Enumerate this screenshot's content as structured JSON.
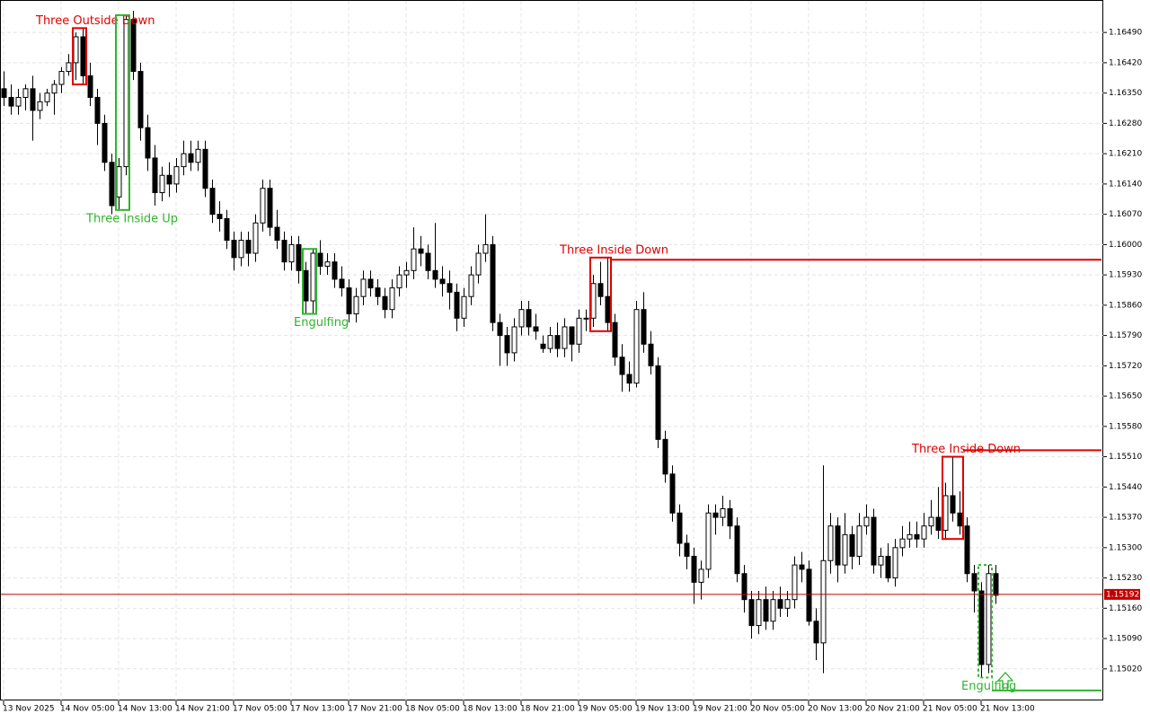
{
  "chart_data": {
    "type": "candlestick",
    "ylim": [
      1.14947,
      1.16565
    ],
    "yticks": [
      {
        "value": 1.1649,
        "label": "1.16490"
      },
      {
        "value": 1.1642,
        "label": "1.16420"
      },
      {
        "value": 1.1635,
        "label": "1.16350"
      },
      {
        "value": 1.1628,
        "label": "1.16280"
      },
      {
        "value": 1.1621,
        "label": "1.16210"
      },
      {
        "value": 1.1614,
        "label": "1.16140"
      },
      {
        "value": 1.1607,
        "label": "1.16070"
      },
      {
        "value": 1.16,
        "label": "1.16000"
      },
      {
        "value": 1.1593,
        "label": "1.15930"
      },
      {
        "value": 1.1586,
        "label": "1.15860"
      },
      {
        "value": 1.1579,
        "label": "1.15790"
      },
      {
        "value": 1.1572,
        "label": "1.15720"
      },
      {
        "value": 1.1565,
        "label": "1.15650"
      },
      {
        "value": 1.1558,
        "label": "1.15580"
      },
      {
        "value": 1.1551,
        "label": "1.15510"
      },
      {
        "value": 1.1544,
        "label": "1.15440"
      },
      {
        "value": 1.1537,
        "label": "1.15370"
      },
      {
        "value": 1.153,
        "label": "1.15300"
      },
      {
        "value": 1.1523,
        "label": "1.15230"
      },
      {
        "value": 1.1516,
        "label": "1.15160"
      },
      {
        "value": 1.1509,
        "label": "1.15090"
      },
      {
        "value": 1.1502,
        "label": "1.15020"
      }
    ],
    "grid": true,
    "categories": [
      "13 Nov 2025",
      null,
      null,
      null,
      null,
      null,
      null,
      null,
      "14 Nov 05:00",
      null,
      null,
      null,
      null,
      null,
      null,
      null,
      "14 Nov 13:00",
      null,
      null,
      null,
      null,
      null,
      null,
      null,
      "14 Nov 21:00",
      null,
      null,
      null,
      null,
      null,
      null,
      null,
      "17 Nov 05:00",
      null,
      null,
      null,
      null,
      null,
      null,
      null,
      "17 Nov 13:00",
      null,
      null,
      null,
      null,
      null,
      null,
      null,
      "17 Nov 21:00",
      null,
      null,
      null,
      null,
      null,
      null,
      null,
      "18 Nov 05:00",
      null,
      null,
      null,
      null,
      null,
      null,
      null,
      "18 Nov 13:00",
      null,
      null,
      null,
      null,
      null,
      null,
      null,
      "18 Nov 21:00",
      null,
      null,
      null,
      null,
      null,
      null,
      null,
      "19 Nov 05:00",
      null,
      null,
      null,
      null,
      null,
      null,
      null,
      "19 Nov 13:00",
      null,
      null,
      null,
      null,
      null,
      null,
      null,
      "19 Nov 21:00",
      null,
      null,
      null,
      null,
      null,
      null,
      null,
      "20 Nov 05:00",
      null,
      null,
      null,
      null,
      null,
      null,
      null,
      "20 Nov 13:00",
      null,
      null,
      null,
      null,
      null,
      null,
      null,
      "20 Nov 21:00",
      null,
      null,
      null,
      null,
      null,
      null,
      null,
      "21 Nov 05:00",
      null,
      null,
      null,
      null,
      null,
      null,
      null,
      "21 Nov 13:00",
      null,
      null
    ],
    "open": [
      1.1636,
      1.1634,
      1.1632,
      1.1634,
      1.1636,
      1.1631,
      1.1633,
      1.1635,
      1.1637,
      1.164,
      1.1642,
      1.1648,
      1.1639,
      1.1634,
      1.1628,
      1.1619,
      1.1611,
      1.1618,
      1.1652,
      1.164,
      1.1627,
      1.162,
      1.1612,
      1.1616,
      1.1614,
      1.1618,
      1.1621,
      1.1619,
      1.1622,
      1.1613,
      1.1607,
      1.1606,
      1.1601,
      1.1597,
      1.1601,
      1.1598,
      1.1605,
      1.1613,
      1.1604,
      1.1601,
      1.1596,
      1.16,
      1.1594,
      1.1587,
      1.1598,
      1.1595,
      1.1596,
      1.1592,
      1.159,
      1.1584,
      1.1588,
      1.1592,
      1.159,
      1.1588,
      1.1585,
      1.159,
      1.1593,
      1.1594,
      1.1599,
      1.1598,
      1.1594,
      1.1592,
      1.1591,
      1.1589,
      1.1583,
      1.1588,
      1.1593,
      1.1598,
      1.16,
      1.1582,
      1.1579,
      1.1575,
      1.1581,
      1.1585,
      1.1581,
      1.1577,
      1.1576,
      1.1579,
      1.1576,
      1.1581,
      1.1577,
      1.1583,
      1.1583,
      1.1591,
      1.1588,
      1.1582,
      1.1574,
      1.157,
      1.1568,
      1.1585,
      1.1577,
      1.1572,
      1.1555,
      1.1547,
      1.1538,
      1.1531,
      1.1528,
      1.1522,
      1.1525,
      1.1538,
      1.1537,
      1.1539,
      1.1535,
      1.1524,
      1.1518,
      1.1512,
      1.1518,
      1.1513,
      1.1518,
      1.1516,
      1.1518,
      1.1526,
      1.1525,
      1.1513,
      1.1508,
      1.1527,
      1.1535,
      1.1526,
      1.1533,
      1.1528,
      1.1535,
      1.1537,
      1.1526,
      1.1528,
      1.1523,
      1.153,
      1.1532,
      1.1533,
      1.1532,
      1.1535,
      1.1537,
      1.1534,
      1.1542,
      1.1538,
      1.1535,
      1.1524,
      1.152,
      1.1503,
      1.1524
    ],
    "high": [
      1.164,
      1.1637,
      1.1636,
      1.1637,
      1.1639,
      1.1635,
      1.1636,
      1.1638,
      1.1641,
      1.1644,
      1.1649,
      1.165,
      1.1642,
      1.1636,
      1.163,
      1.1621,
      1.162,
      1.1653,
      1.1654,
      1.1642,
      1.163,
      1.1623,
      1.1618,
      1.1619,
      1.162,
      1.1624,
      1.1624,
      1.1624,
      1.1624,
      1.1615,
      1.161,
      1.1608,
      1.1603,
      1.1603,
      1.1603,
      1.1607,
      1.1615,
      1.1615,
      1.1608,
      1.1603,
      1.1602,
      1.1602,
      1.1596,
      1.1599,
      1.1601,
      1.1598,
      1.1598,
      1.1595,
      1.1592,
      1.159,
      1.1594,
      1.1594,
      1.1592,
      1.159,
      1.1592,
      1.1595,
      1.1596,
      1.1604,
      1.1602,
      1.16,
      1.1605,
      1.1595,
      1.1594,
      1.1591,
      1.159,
      1.1595,
      1.16,
      1.1607,
      1.1602,
      1.1584,
      1.1581,
      1.1583,
      1.1587,
      1.1587,
      1.1584,
      1.1579,
      1.1581,
      1.1582,
      1.1583,
      1.1581,
      1.1585,
      1.1585,
      1.1593,
      1.1596,
      1.1597,
      1.1584,
      1.1577,
      1.1573,
      1.1587,
      1.1589,
      1.158,
      1.1574,
      1.1557,
      1.1549,
      1.154,
      1.1533,
      1.153,
      1.1527,
      1.154,
      1.154,
      1.1542,
      1.1541,
      1.1537,
      1.1526,
      1.152,
      1.152,
      1.1521,
      1.152,
      1.1521,
      1.152,
      1.1528,
      1.1529,
      1.1527,
      1.1516,
      1.1549,
      1.1538,
      1.1537,
      1.1538,
      1.1535,
      1.1538,
      1.154,
      1.1539,
      1.153,
      1.1531,
      1.1532,
      1.1535,
      1.1536,
      1.1536,
      1.1538,
      1.1541,
      1.1544,
      1.1545,
      1.1551,
      1.1543,
      1.1537,
      1.1526,
      1.1522,
      1.1526,
      1.1526
    ],
    "low": [
      1.1632,
      1.163,
      1.163,
      1.1631,
      1.1624,
      1.1629,
      1.1632,
      1.163,
      1.1635,
      1.1639,
      1.1638,
      1.1637,
      1.1632,
      1.1623,
      1.1617,
      1.1607,
      1.1608,
      1.1616,
      1.1638,
      1.1624,
      1.1617,
      1.1609,
      1.161,
      1.1611,
      1.1612,
      1.1616,
      1.1617,
      1.1617,
      1.1611,
      1.1605,
      1.1603,
      1.1599,
      1.1594,
      1.1595,
      1.1595,
      1.1596,
      1.1603,
      1.1602,
      1.1599,
      1.1594,
      1.1594,
      1.1591,
      1.1584,
      1.1584,
      1.1593,
      1.1593,
      1.159,
      1.1588,
      1.1582,
      1.1582,
      1.1586,
      1.1588,
      1.1586,
      1.1583,
      1.1583,
      1.1588,
      1.159,
      1.1592,
      1.1595,
      1.1592,
      1.159,
      1.1588,
      1.1585,
      1.158,
      1.1581,
      1.1586,
      1.1591,
      1.1596,
      1.158,
      1.1572,
      1.1572,
      1.1573,
      1.1579,
      1.1579,
      1.1578,
      1.1575,
      1.1575,
      1.1574,
      1.1574,
      1.1573,
      1.1575,
      1.158,
      1.1581,
      1.1586,
      1.158,
      1.1572,
      1.1566,
      1.1566,
      1.1567,
      1.1575,
      1.157,
      1.1553,
      1.1545,
      1.1536,
      1.1528,
      1.1525,
      1.1517,
      1.1518,
      1.1523,
      1.1533,
      1.1535,
      1.1532,
      1.1522,
      1.1515,
      1.1509,
      1.151,
      1.1511,
      1.1511,
      1.1514,
      1.1514,
      1.1516,
      1.1522,
      1.1512,
      1.1504,
      1.1501,
      1.1524,
      1.1522,
      1.1524,
      1.1525,
      1.1526,
      1.1533,
      1.1524,
      1.1523,
      1.1522,
      1.1521,
      1.1528,
      1.153,
      1.153,
      1.153,
      1.1533,
      1.1532,
      1.1532,
      1.1536,
      1.1533,
      1.1522,
      1.1515,
      1.15,
      1.1501,
      1.1517
    ],
    "close": [
      1.1634,
      1.1632,
      1.1634,
      1.1636,
      1.1631,
      1.1633,
      1.1635,
      1.1637,
      1.164,
      1.1642,
      1.1648,
      1.1639,
      1.1634,
      1.1628,
      1.1619,
      1.1609,
      1.1618,
      1.1652,
      1.164,
      1.1627,
      1.162,
      1.1612,
      1.1616,
      1.1614,
      1.1618,
      1.1621,
      1.1619,
      1.1622,
      1.1613,
      1.1607,
      1.1606,
      1.1601,
      1.1597,
      1.1601,
      1.1598,
      1.1605,
      1.1613,
      1.1604,
      1.1601,
      1.1596,
      1.16,
      1.1594,
      1.1587,
      1.1598,
      1.1595,
      1.1596,
      1.1592,
      1.159,
      1.1584,
      1.1588,
      1.1592,
      1.159,
      1.1588,
      1.1585,
      1.159,
      1.1593,
      1.1594,
      1.1599,
      1.1598,
      1.1594,
      1.1592,
      1.1591,
      1.1589,
      1.1583,
      1.1588,
      1.1593,
      1.1598,
      1.16,
      1.1582,
      1.1579,
      1.1575,
      1.1581,
      1.1585,
      1.1581,
      1.158,
      1.1576,
      1.1579,
      1.1576,
      1.1581,
      1.1577,
      1.1583,
      1.1583,
      1.1591,
      1.1588,
      1.1582,
      1.1574,
      1.157,
      1.1568,
      1.1585,
      1.1577,
      1.1572,
      1.1555,
      1.1547,
      1.1538,
      1.1531,
      1.1528,
      1.1522,
      1.1525,
      1.1538,
      1.1537,
      1.1539,
      1.1535,
      1.1524,
      1.1518,
      1.1512,
      1.1518,
      1.1513,
      1.1518,
      1.1516,
      1.1518,
      1.1526,
      1.1525,
      1.1513,
      1.1508,
      1.1527,
      1.1535,
      1.1526,
      1.1533,
      1.1528,
      1.1535,
      1.1537,
      1.1526,
      1.1528,
      1.1523,
      1.153,
      1.1532,
      1.1533,
      1.1532,
      1.1535,
      1.1537,
      1.1534,
      1.1542,
      1.1538,
      1.1535,
      1.1524,
      1.152,
      1.1503,
      1.1524,
      1.1519
    ],
    "current_price": {
      "value": 1.15192,
      "label": "1.15192"
    },
    "annotations": [
      {
        "text": "Three Outside Down",
        "color": "#e00000"
      },
      {
        "text": "Three Inside Up",
        "color": "#2db52d"
      },
      {
        "text": "Engulfing",
        "color": "#2db52d"
      },
      {
        "text": "Three Inside Down",
        "color": "#e00000",
        "level": 1.15965
      },
      {
        "text": "Three Inside Down",
        "color": "#e00000",
        "level": 1.15525
      },
      {
        "text": "Engulfing",
        "color": "#2db52d",
        "level": 1.1497
      }
    ]
  }
}
